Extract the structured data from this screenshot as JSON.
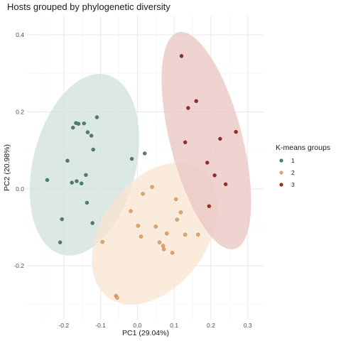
{
  "chart_data": {
    "type": "scatter",
    "title": "Hosts grouped by phylogenetic diversity",
    "xlabel": "PC1 (29.04%)",
    "ylabel": "PC2 (20.98%)",
    "xlim": [
      -0.3,
      0.345
    ],
    "ylim": [
      -0.34,
      0.45
    ],
    "xticks": [
      -0.2,
      -0.1,
      0.0,
      0.1,
      0.2,
      0.3
    ],
    "xtick_labels": [
      "-0.2",
      "-0.1",
      "0.0",
      "0.1",
      "0.2",
      "0.3"
    ],
    "yticks": [
      -0.2,
      0.0,
      0.2,
      0.4
    ],
    "ytick_labels": [
      "-0.2",
      "0.0",
      "0.2",
      "0.4"
    ],
    "grid": true,
    "confidence_ellipses": true,
    "legend": {
      "title": "K-means groups",
      "position": "right"
    },
    "series": [
      {
        "name": "1",
        "color": "#4e7d6e",
        "fill": "#cfe0da",
        "points": [
          [
            -0.245,
            0.023
          ],
          [
            -0.21,
            -0.139
          ],
          [
            -0.205,
            -0.079
          ],
          [
            -0.19,
            0.073
          ],
          [
            -0.178,
            0.016
          ],
          [
            -0.175,
            0.159
          ],
          [
            -0.167,
            0.171
          ],
          [
            -0.165,
            0.02
          ],
          [
            -0.16,
            0.169
          ],
          [
            -0.152,
            0.014
          ],
          [
            -0.145,
            0.17
          ],
          [
            -0.14,
            0.036
          ],
          [
            -0.137,
            -0.036
          ],
          [
            -0.135,
            0.147
          ],
          [
            -0.125,
            0.138
          ],
          [
            -0.122,
            -0.089
          ],
          [
            -0.12,
            0.102
          ],
          [
            -0.11,
            0.186
          ],
          [
            -0.015,
            0.078
          ],
          [
            0.02,
            0.092
          ]
        ]
      },
      {
        "name": "2",
        "color": "#e3a465",
        "fill": "#f9e4d2",
        "points": [
          [
            -0.095,
            -0.138
          ],
          [
            -0.058,
            -0.278
          ],
          [
            -0.055,
            -0.283
          ],
          [
            -0.018,
            -0.058
          ],
          [
            0.002,
            -0.096
          ],
          [
            0.01,
            -0.124
          ],
          [
            0.015,
            -0.013
          ],
          [
            0.04,
            0.005
          ],
          [
            0.05,
            -0.098
          ],
          [
            0.06,
            -0.139
          ],
          [
            0.07,
            -0.148
          ],
          [
            0.072,
            -0.157
          ],
          [
            0.08,
            -0.116
          ],
          [
            0.095,
            -0.166
          ],
          [
            0.105,
            -0.027
          ],
          [
            0.108,
            -0.08
          ],
          [
            0.118,
            -0.061
          ],
          [
            0.13,
            -0.119
          ],
          [
            0.165,
            -0.119
          ]
        ]
      },
      {
        "name": "3",
        "color": "#9b2a24",
        "fill": "#e8c4c1",
        "points": [
          [
            0.12,
            0.345
          ],
          [
            0.13,
            0.121
          ],
          [
            0.138,
            0.21
          ],
          [
            0.16,
            0.228
          ],
          [
            0.19,
            0.068
          ],
          [
            0.195,
            -0.045
          ],
          [
            0.21,
            0.035
          ],
          [
            0.225,
            0.13
          ],
          [
            0.24,
            0.012
          ],
          [
            0.268,
            0.148
          ]
        ]
      }
    ]
  }
}
